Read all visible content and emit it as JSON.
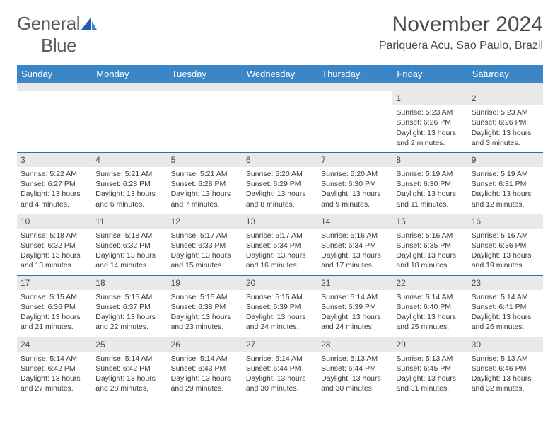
{
  "brand": {
    "name_part1": "General",
    "name_part2": "Blue"
  },
  "colors": {
    "header_bg": "#3b86c6",
    "header_text": "#ffffff",
    "daynum_bg": "#e9e9e9",
    "border": "#2f6ea8",
    "text": "#3a3a3a",
    "title": "#4a4a4a",
    "logo_grey": "#5a5a5a",
    "logo_blue": "#2a7ac0"
  },
  "title": "November 2024",
  "location": "Pariquera Acu, Sao Paulo, Brazil",
  "day_headers": [
    "Sunday",
    "Monday",
    "Tuesday",
    "Wednesday",
    "Thursday",
    "Friday",
    "Saturday"
  ],
  "weeks": [
    [
      null,
      null,
      null,
      null,
      null,
      {
        "n": "1",
        "sr": "Sunrise: 5:23 AM",
        "ss": "Sunset: 6:26 PM",
        "d1": "Daylight: 13 hours",
        "d2": "and 2 minutes."
      },
      {
        "n": "2",
        "sr": "Sunrise: 5:23 AM",
        "ss": "Sunset: 6:26 PM",
        "d1": "Daylight: 13 hours",
        "d2": "and 3 minutes."
      }
    ],
    [
      {
        "n": "3",
        "sr": "Sunrise: 5:22 AM",
        "ss": "Sunset: 6:27 PM",
        "d1": "Daylight: 13 hours",
        "d2": "and 4 minutes."
      },
      {
        "n": "4",
        "sr": "Sunrise: 5:21 AM",
        "ss": "Sunset: 6:28 PM",
        "d1": "Daylight: 13 hours",
        "d2": "and 6 minutes."
      },
      {
        "n": "5",
        "sr": "Sunrise: 5:21 AM",
        "ss": "Sunset: 6:28 PM",
        "d1": "Daylight: 13 hours",
        "d2": "and 7 minutes."
      },
      {
        "n": "6",
        "sr": "Sunrise: 5:20 AM",
        "ss": "Sunset: 6:29 PM",
        "d1": "Daylight: 13 hours",
        "d2": "and 8 minutes."
      },
      {
        "n": "7",
        "sr": "Sunrise: 5:20 AM",
        "ss": "Sunset: 6:30 PM",
        "d1": "Daylight: 13 hours",
        "d2": "and 9 minutes."
      },
      {
        "n": "8",
        "sr": "Sunrise: 5:19 AM",
        "ss": "Sunset: 6:30 PM",
        "d1": "Daylight: 13 hours",
        "d2": "and 11 minutes."
      },
      {
        "n": "9",
        "sr": "Sunrise: 5:19 AM",
        "ss": "Sunset: 6:31 PM",
        "d1": "Daylight: 13 hours",
        "d2": "and 12 minutes."
      }
    ],
    [
      {
        "n": "10",
        "sr": "Sunrise: 5:18 AM",
        "ss": "Sunset: 6:32 PM",
        "d1": "Daylight: 13 hours",
        "d2": "and 13 minutes."
      },
      {
        "n": "11",
        "sr": "Sunrise: 5:18 AM",
        "ss": "Sunset: 6:32 PM",
        "d1": "Daylight: 13 hours",
        "d2": "and 14 minutes."
      },
      {
        "n": "12",
        "sr": "Sunrise: 5:17 AM",
        "ss": "Sunset: 6:33 PM",
        "d1": "Daylight: 13 hours",
        "d2": "and 15 minutes."
      },
      {
        "n": "13",
        "sr": "Sunrise: 5:17 AM",
        "ss": "Sunset: 6:34 PM",
        "d1": "Daylight: 13 hours",
        "d2": "and 16 minutes."
      },
      {
        "n": "14",
        "sr": "Sunrise: 5:16 AM",
        "ss": "Sunset: 6:34 PM",
        "d1": "Daylight: 13 hours",
        "d2": "and 17 minutes."
      },
      {
        "n": "15",
        "sr": "Sunrise: 5:16 AM",
        "ss": "Sunset: 6:35 PM",
        "d1": "Daylight: 13 hours",
        "d2": "and 18 minutes."
      },
      {
        "n": "16",
        "sr": "Sunrise: 5:16 AM",
        "ss": "Sunset: 6:36 PM",
        "d1": "Daylight: 13 hours",
        "d2": "and 19 minutes."
      }
    ],
    [
      {
        "n": "17",
        "sr": "Sunrise: 5:15 AM",
        "ss": "Sunset: 6:36 PM",
        "d1": "Daylight: 13 hours",
        "d2": "and 21 minutes."
      },
      {
        "n": "18",
        "sr": "Sunrise: 5:15 AM",
        "ss": "Sunset: 6:37 PM",
        "d1": "Daylight: 13 hours",
        "d2": "and 22 minutes."
      },
      {
        "n": "19",
        "sr": "Sunrise: 5:15 AM",
        "ss": "Sunset: 6:38 PM",
        "d1": "Daylight: 13 hours",
        "d2": "and 23 minutes."
      },
      {
        "n": "20",
        "sr": "Sunrise: 5:15 AM",
        "ss": "Sunset: 6:39 PM",
        "d1": "Daylight: 13 hours",
        "d2": "and 24 minutes."
      },
      {
        "n": "21",
        "sr": "Sunrise: 5:14 AM",
        "ss": "Sunset: 6:39 PM",
        "d1": "Daylight: 13 hours",
        "d2": "and 24 minutes."
      },
      {
        "n": "22",
        "sr": "Sunrise: 5:14 AM",
        "ss": "Sunset: 6:40 PM",
        "d1": "Daylight: 13 hours",
        "d2": "and 25 minutes."
      },
      {
        "n": "23",
        "sr": "Sunrise: 5:14 AM",
        "ss": "Sunset: 6:41 PM",
        "d1": "Daylight: 13 hours",
        "d2": "and 26 minutes."
      }
    ],
    [
      {
        "n": "24",
        "sr": "Sunrise: 5:14 AM",
        "ss": "Sunset: 6:42 PM",
        "d1": "Daylight: 13 hours",
        "d2": "and 27 minutes."
      },
      {
        "n": "25",
        "sr": "Sunrise: 5:14 AM",
        "ss": "Sunset: 6:42 PM",
        "d1": "Daylight: 13 hours",
        "d2": "and 28 minutes."
      },
      {
        "n": "26",
        "sr": "Sunrise: 5:14 AM",
        "ss": "Sunset: 6:43 PM",
        "d1": "Daylight: 13 hours",
        "d2": "and 29 minutes."
      },
      {
        "n": "27",
        "sr": "Sunrise: 5:14 AM",
        "ss": "Sunset: 6:44 PM",
        "d1": "Daylight: 13 hours",
        "d2": "and 30 minutes."
      },
      {
        "n": "28",
        "sr": "Sunrise: 5:13 AM",
        "ss": "Sunset: 6:44 PM",
        "d1": "Daylight: 13 hours",
        "d2": "and 30 minutes."
      },
      {
        "n": "29",
        "sr": "Sunrise: 5:13 AM",
        "ss": "Sunset: 6:45 PM",
        "d1": "Daylight: 13 hours",
        "d2": "and 31 minutes."
      },
      {
        "n": "30",
        "sr": "Sunrise: 5:13 AM",
        "ss": "Sunset: 6:46 PM",
        "d1": "Daylight: 13 hours",
        "d2": "and 32 minutes."
      }
    ]
  ]
}
